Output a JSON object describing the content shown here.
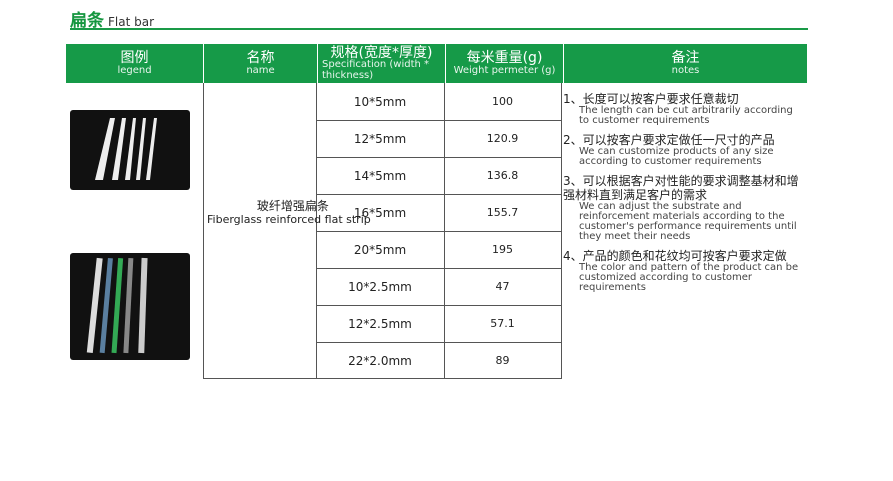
{
  "title": {
    "cn": "扁条",
    "en": "Flat bar"
  },
  "header": [
    {
      "cn": "图例",
      "en": "legend"
    },
    {
      "cn": "名称",
      "en": "name"
    },
    {
      "cn": "规格(宽度*厚度)",
      "en": "Specification (width * thickness)"
    },
    {
      "cn": "每米重量(g)",
      "en": "Weight permeter (g)"
    },
    {
      "cn": "备注",
      "en": "notes"
    }
  ],
  "product": {
    "cn": "玻纤增强扁条",
    "en": "Fiberglass reinforced flat strip"
  },
  "rows": [
    {
      "spec": "10*5mm",
      "weight": "100"
    },
    {
      "spec": "12*5mm",
      "weight": "120.9"
    },
    {
      "spec": "14*5mm",
      "weight": "136.8"
    },
    {
      "spec": "16*5mm",
      "weight": "155.7"
    },
    {
      "spec": "20*5mm",
      "weight": "195"
    },
    {
      "spec": "10*2.5mm",
      "weight": "47"
    },
    {
      "spec": "12*2.5mm",
      "weight": "57.1"
    },
    {
      "spec": "22*2.0mm",
      "weight": "89"
    }
  ],
  "notes": [
    {
      "cn": "1、长度可以按客户要求任意裁切",
      "en": "The length can be cut arbitrarily according to customer requirements"
    },
    {
      "cn": "2、可以按客户要求定做任一尺寸的产品",
      "en": "We can customize products of any size according to customer requirements"
    },
    {
      "cn": "3、可以根据客户对性能的要求调整基材和增强材料直到满足客户的需求",
      "en": "We can adjust the substrate and reinforcement materials according to the customer's performance requirements until they meet their needs"
    },
    {
      "cn": "4、产品的颜色和花纹均可按客户要求定做",
      "en": "The color and pattern of the product can be customized according to customer requirements"
    }
  ],
  "colors": {
    "brand_green": "#169a48"
  }
}
